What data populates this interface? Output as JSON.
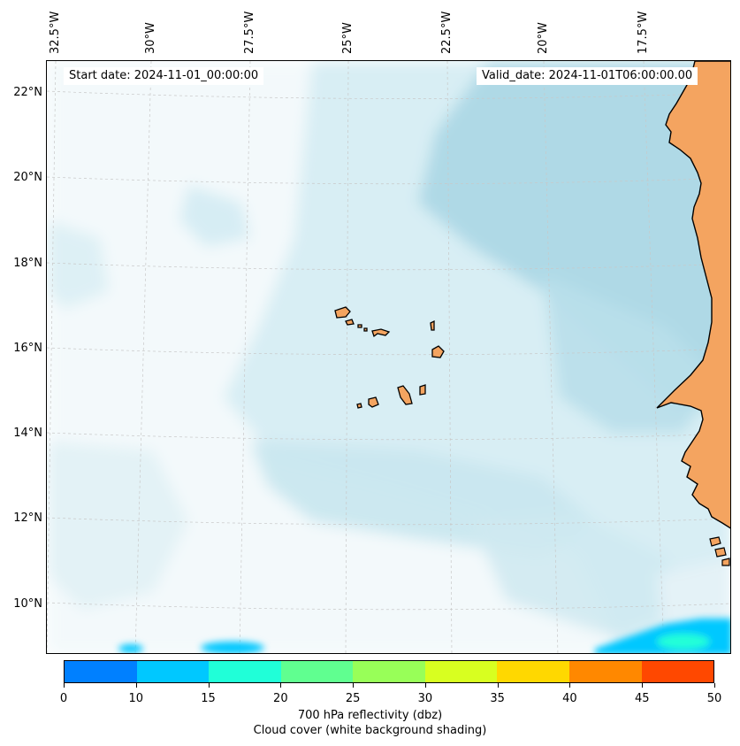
{
  "header": {
    "start_date": "Start date: 2024-11-01_00:00:00",
    "valid_date": "Valid_date: 2024-11-01T06:00:00.00"
  },
  "axes": {
    "lon_labels": [
      "32.5°W",
      "30°W",
      "27.5°W",
      "25°W",
      "22.5°W",
      "20°W",
      "17.5°W"
    ],
    "lat_labels": [
      "22°N",
      "20°N",
      "18°N",
      "16°N",
      "14°N",
      "12°N",
      "10°N"
    ]
  },
  "colorbar": {
    "ticks": [
      "0",
      "10",
      "15",
      "20",
      "25",
      "30",
      "35",
      "40",
      "45",
      "50"
    ],
    "colors": [
      "#0080ff",
      "#00c8ff",
      "#20ffd8",
      "#60ff90",
      "#98ff58",
      "#d8ff20",
      "#ffd800",
      "#ff8800",
      "#ff4800"
    ],
    "label_line1": "700 hPa reflectivity (dbz)",
    "label_line2": "Cloud cover (white background shading)"
  },
  "map": {
    "land_color": "#f4a460",
    "cloud_color": "#add8e6",
    "ocean_color": "#ffffff"
  }
}
